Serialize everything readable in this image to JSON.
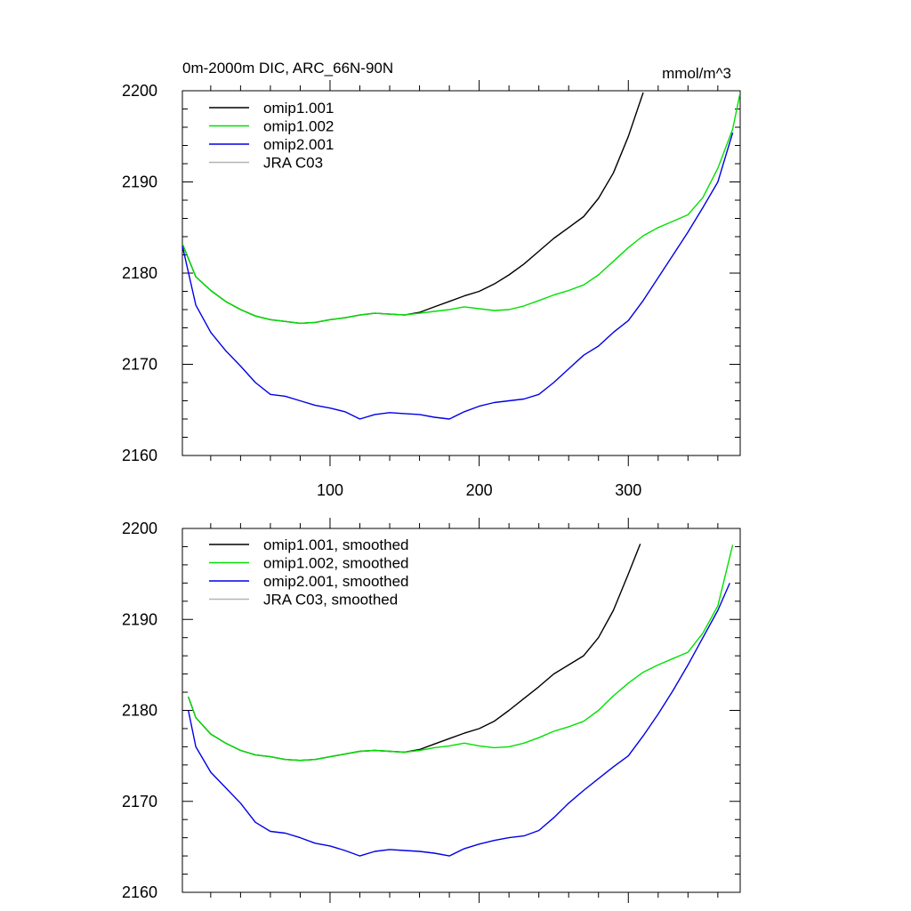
{
  "chart_data": [
    {
      "type": "line",
      "title": "0m-2000m DIC, ARC_66N-90N",
      "units": "mmol/m^3",
      "xlim": [
        1,
        375
      ],
      "ylim": [
        2160,
        2200
      ],
      "xticks": [
        100,
        200,
        300
      ],
      "xtick_labels": [
        "100",
        "200",
        "300"
      ],
      "yticks": [
        2160,
        2170,
        2180,
        2190,
        2200
      ],
      "ytick_labels": [
        "2160",
        "2170",
        "2180",
        "2190",
        "2200"
      ],
      "legend_position": "top-left",
      "series": [
        {
          "name": "omip1.001",
          "color": "#000000",
          "x": [
            1,
            10,
            20,
            30,
            40,
            50,
            60,
            70,
            80,
            90,
            100,
            110,
            120,
            130,
            140,
            150,
            160,
            170,
            180,
            190,
            200,
            210,
            220,
            230,
            240,
            250,
            260,
            270,
            280,
            290,
            300,
            310
          ],
          "y": [
            2183.2,
            2179.6,
            2178.1,
            2176.9,
            2176.0,
            2175.3,
            2174.9,
            2174.7,
            2174.5,
            2174.6,
            2174.9,
            2175.1,
            2175.4,
            2175.6,
            2175.5,
            2175.4,
            2175.7,
            2176.3,
            2176.9,
            2177.5,
            2178.0,
            2178.8,
            2179.8,
            2181.0,
            2182.4,
            2183.8,
            2185.0,
            2186.2,
            2188.2,
            2191.0,
            2195.0,
            2199.8
          ]
        },
        {
          "name": "omip1.002",
          "color": "#00e000",
          "x": [
            1,
            10,
            20,
            30,
            40,
            50,
            60,
            70,
            80,
            90,
            100,
            110,
            120,
            130,
            140,
            150,
            160,
            170,
            180,
            190,
            200,
            210,
            220,
            230,
            240,
            250,
            260,
            270,
            280,
            290,
            300,
            310,
            320,
            330,
            340,
            350,
            360,
            370,
            375
          ],
          "y": [
            2183.2,
            2179.6,
            2178.1,
            2176.9,
            2176.0,
            2175.3,
            2174.9,
            2174.7,
            2174.5,
            2174.6,
            2174.9,
            2175.1,
            2175.4,
            2175.6,
            2175.5,
            2175.4,
            2175.6,
            2175.8,
            2176.0,
            2176.3,
            2176.1,
            2175.9,
            2176.0,
            2176.4,
            2177.0,
            2177.6,
            2178.1,
            2178.7,
            2179.8,
            2181.3,
            2182.8,
            2184.1,
            2185.0,
            2185.7,
            2186.4,
            2188.3,
            2191.5,
            2195.8,
            2199.8
          ]
        },
        {
          "name": "omip2.001",
          "color": "#0000e6",
          "x": [
            1,
            10,
            20,
            30,
            40,
            50,
            60,
            70,
            80,
            90,
            100,
            110,
            120,
            130,
            140,
            150,
            160,
            170,
            180,
            190,
            200,
            210,
            220,
            230,
            240,
            250,
            260,
            270,
            280,
            290,
            300,
            310,
            320,
            330,
            340,
            350,
            360,
            370
          ],
          "y": [
            2183.0,
            2176.5,
            2173.5,
            2171.5,
            2169.8,
            2168.0,
            2166.7,
            2166.5,
            2166.0,
            2165.5,
            2165.2,
            2164.8,
            2164.0,
            2164.5,
            2164.7,
            2164.6,
            2164.5,
            2164.2,
            2164.0,
            2164.8,
            2165.4,
            2165.8,
            2166.0,
            2166.2,
            2166.7,
            2168.0,
            2169.5,
            2171.0,
            2172.0,
            2173.5,
            2174.8,
            2177.0,
            2179.5,
            2182.0,
            2184.5,
            2187.2,
            2190.0,
            2195.4
          ]
        },
        {
          "name": "JRA C03",
          "color": "#b4b4b4",
          "x": [],
          "y": []
        }
      ]
    },
    {
      "type": "line",
      "title": "",
      "units": "",
      "xlim": [
        1,
        375
      ],
      "ylim": [
        2160,
        2200
      ],
      "xticks": [
        100,
        200,
        300
      ],
      "xtick_labels": [],
      "yticks": [
        2160,
        2170,
        2180,
        2190,
        2200
      ],
      "ytick_labels": [
        "2160",
        "2170",
        "2180",
        "2190",
        "2200"
      ],
      "legend_position": "top-left",
      "series": [
        {
          "name": "omip1.001, smoothed",
          "color": "#000000",
          "x": [
            5,
            10,
            20,
            30,
            40,
            50,
            60,
            70,
            80,
            90,
            100,
            110,
            120,
            130,
            140,
            150,
            160,
            170,
            180,
            190,
            200,
            210,
            220,
            230,
            240,
            250,
            260,
            270,
            280,
            290,
            300,
            308
          ],
          "y": [
            2181.5,
            2179.2,
            2177.4,
            2176.4,
            2175.6,
            2175.1,
            2174.9,
            2174.6,
            2174.5,
            2174.6,
            2174.9,
            2175.2,
            2175.5,
            2175.6,
            2175.5,
            2175.4,
            2175.7,
            2176.3,
            2176.9,
            2177.5,
            2178.0,
            2178.8,
            2180.0,
            2181.3,
            2182.6,
            2184.0,
            2185.0,
            2186.0,
            2188.0,
            2191.0,
            2195.0,
            2198.3
          ]
        },
        {
          "name": "omip1.002, smoothed",
          "color": "#00e000",
          "x": [
            5,
            10,
            20,
            30,
            40,
            50,
            60,
            70,
            80,
            90,
            100,
            110,
            120,
            130,
            140,
            150,
            160,
            170,
            180,
            190,
            200,
            210,
            220,
            230,
            240,
            250,
            260,
            270,
            280,
            290,
            300,
            310,
            320,
            330,
            340,
            350,
            360,
            370
          ],
          "y": [
            2181.5,
            2179.2,
            2177.4,
            2176.4,
            2175.6,
            2175.1,
            2174.9,
            2174.6,
            2174.5,
            2174.6,
            2174.9,
            2175.2,
            2175.5,
            2175.6,
            2175.5,
            2175.4,
            2175.6,
            2175.9,
            2176.1,
            2176.4,
            2176.1,
            2175.9,
            2176.0,
            2176.4,
            2177.0,
            2177.7,
            2178.2,
            2178.8,
            2180.0,
            2181.6,
            2183.0,
            2184.2,
            2185.0,
            2185.7,
            2186.4,
            2188.5,
            2191.5,
            2198.2
          ]
        },
        {
          "name": "omip2.001, smoothed",
          "color": "#0000e6",
          "x": [
            5,
            10,
            20,
            30,
            40,
            50,
            60,
            70,
            80,
            90,
            100,
            110,
            120,
            130,
            140,
            150,
            160,
            170,
            180,
            190,
            200,
            210,
            220,
            230,
            240,
            250,
            260,
            270,
            280,
            290,
            300,
            310,
            320,
            330,
            340,
            350,
            360,
            368
          ],
          "y": [
            2180.0,
            2176.0,
            2173.2,
            2171.5,
            2169.8,
            2167.7,
            2166.7,
            2166.5,
            2166.0,
            2165.4,
            2165.1,
            2164.6,
            2164.0,
            2164.5,
            2164.7,
            2164.6,
            2164.5,
            2164.3,
            2164.0,
            2164.8,
            2165.3,
            2165.7,
            2166.0,
            2166.2,
            2166.8,
            2168.2,
            2169.8,
            2171.2,
            2172.5,
            2173.8,
            2175.0,
            2177.2,
            2179.6,
            2182.2,
            2185.0,
            2188.0,
            2191.0,
            2194.0
          ]
        },
        {
          "name": "JRA C03, smoothed",
          "color": "#b4b4b4",
          "x": [],
          "y": []
        }
      ]
    }
  ]
}
